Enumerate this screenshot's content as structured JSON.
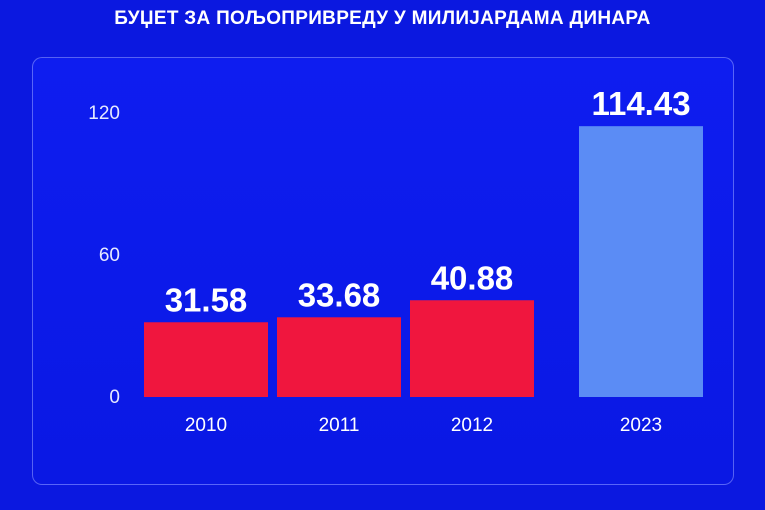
{
  "chart_data": {
    "type": "bar",
    "title": "БУЏЕТ ЗА ПОЉОПРИВРЕДУ У МИЛИЈАРДАМА ДИНАРА",
    "xlabel": "",
    "ylabel": "",
    "categories": [
      "2010",
      "2011",
      "2012",
      "2023"
    ],
    "values": [
      31.58,
      33.68,
      40.88,
      114.43
    ],
    "value_labels": [
      "31.58",
      "33.68",
      "40.88",
      "114.43"
    ],
    "ylim": [
      0,
      120
    ],
    "yticks": [
      "0",
      "60",
      "120"
    ],
    "ytick_values": [
      0,
      60,
      120
    ],
    "grid": false,
    "legend": "none",
    "colors": {
      "background": "#0b18e0",
      "bar_past": "#f0163e",
      "bar_highlight": "#5b8cf5",
      "text": "#ffffff"
    },
    "highlight_index": 3
  }
}
